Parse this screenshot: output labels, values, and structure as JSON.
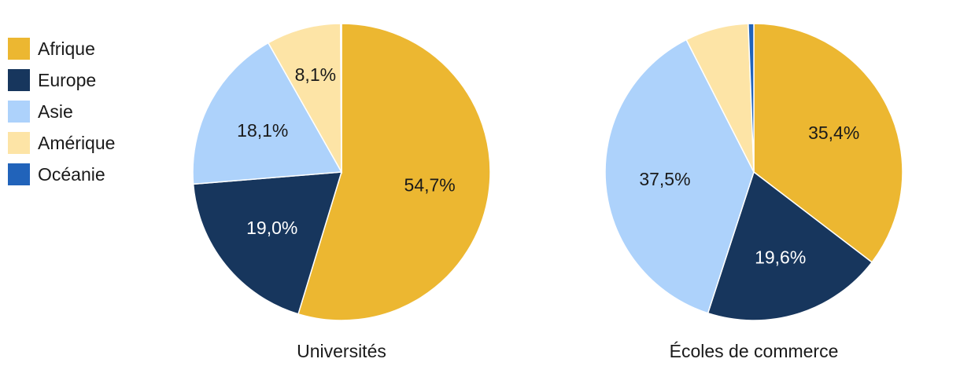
{
  "chart_data": [
    {
      "type": "pie",
      "title": "Universités",
      "categories": [
        "Afrique",
        "Europe",
        "Asie",
        "Amérique",
        "Océanie"
      ],
      "values": [
        54.7,
        19.0,
        18.1,
        8.1,
        0.1
      ],
      "labels": [
        "54,7%",
        "19,0%",
        "18,1%",
        "8,1%",
        ""
      ]
    },
    {
      "type": "pie",
      "title": "Écoles de commerce",
      "categories": [
        "Afrique",
        "Europe",
        "Asie",
        "Amérique",
        "Océanie"
      ],
      "values": [
        35.4,
        19.6,
        37.5,
        6.9,
        0.6
      ],
      "labels": [
        "35,4%",
        "19,6%",
        "37,5%",
        "",
        ""
      ]
    }
  ],
  "legend": [
    {
      "label": "Afrique",
      "color": "#ECB731"
    },
    {
      "label": "Europe",
      "color": "#17365D"
    },
    {
      "label": "Asie",
      "color": "#ADD2FB"
    },
    {
      "label": "Amérique",
      "color": "#FDE4A6"
    },
    {
      "label": "Océanie",
      "color": "#2163BA"
    }
  ],
  "label_colors": {
    "light": "#1a1a1a",
    "dark": "#ffffff"
  }
}
